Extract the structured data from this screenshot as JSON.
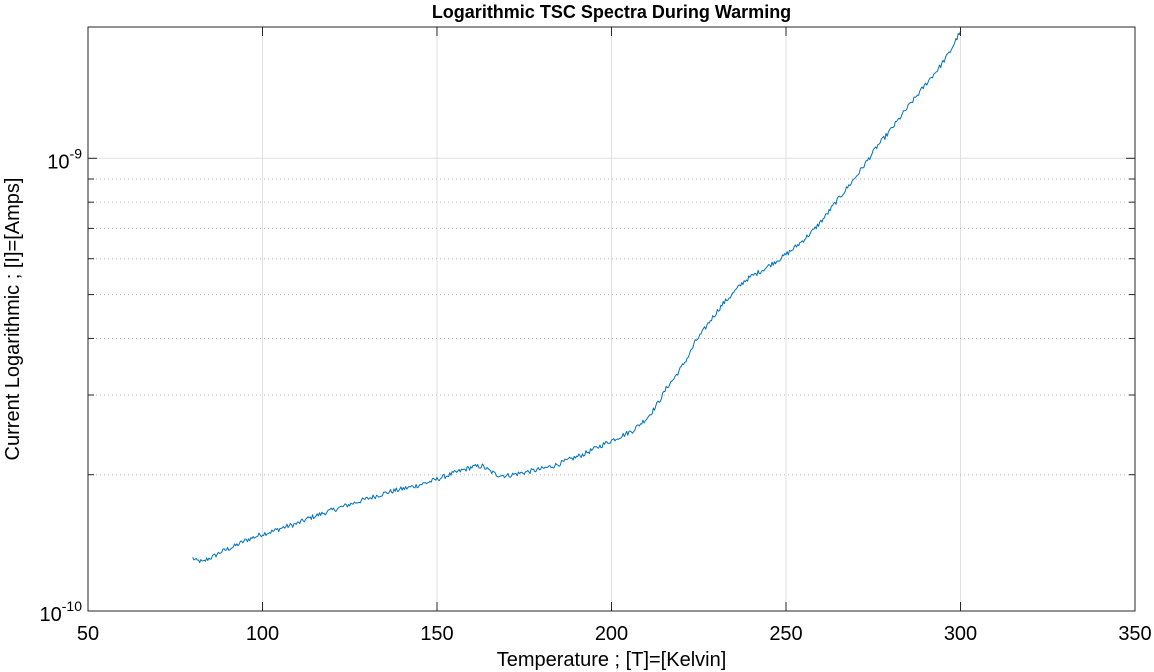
{
  "chart_data": {
    "type": "line",
    "title": "Logarithmic TSC Spectra During Warming",
    "xlabel": "Temperature ; [T]=[Kelvin]",
    "ylabel": "Current Logarithmic ; [I]=[Amps]",
    "xlim": [
      50,
      350
    ],
    "ylim": [
      1e-10,
      1.95e-09
    ],
    "yscale": "log",
    "x_ticks": [
      50,
      100,
      150,
      200,
      250,
      300,
      350
    ],
    "x_tick_labels": [
      "50",
      "100",
      "150",
      "200",
      "250",
      "300",
      "350"
    ],
    "y_major_ticks": [
      {
        "value": 1e-10,
        "base": "10",
        "exp": "-10"
      },
      {
        "value": 1e-09,
        "base": "10",
        "exp": "-9"
      }
    ],
    "y_minor_ticks": [
      2e-10,
      3e-10,
      4e-10,
      5e-10,
      6e-10,
      7e-10,
      8e-10,
      9e-10
    ],
    "grid": true,
    "minor_grid": "dotted",
    "line_color": "#0072BD",
    "series": [
      {
        "x": [
          80,
          81,
          82,
          83,
          84,
          86,
          88,
          90,
          92,
          95,
          98,
          100,
          103,
          106,
          110,
          113,
          116,
          120,
          124,
          128,
          132,
          136,
          140,
          144,
          148,
          152,
          156,
          160,
          163,
          165,
          167,
          170,
          173,
          176,
          180,
          184,
          188,
          192,
          196,
          200,
          204,
          206,
          208,
          210,
          212,
          214,
          216,
          218,
          220,
          222,
          224,
          226,
          228,
          230,
          232,
          234,
          236,
          238,
          240,
          243,
          246,
          249,
          252,
          255,
          258,
          261,
          264,
          267,
          270,
          273,
          276,
          279,
          282,
          285,
          288,
          291,
          294,
          297,
          300
        ],
        "y": [
          1.31e-10,
          1.29e-10,
          1.29e-10,
          1.28e-10,
          1.3e-10,
          1.32e-10,
          1.35e-10,
          1.37e-10,
          1.39e-10,
          1.43e-10,
          1.46e-10,
          1.48e-10,
          1.5e-10,
          1.53e-10,
          1.56e-10,
          1.6e-10,
          1.63e-10,
          1.67e-10,
          1.71e-10,
          1.75e-10,
          1.79e-10,
          1.83e-10,
          1.86e-10,
          1.89e-10,
          1.93e-10,
          1.98e-10,
          2.03e-10,
          2.08e-10,
          2.09e-10,
          2.04e-10,
          2e-10,
          1.99e-10,
          2.01e-10,
          2.03e-10,
          2.06e-10,
          2.1e-10,
          2.16e-10,
          2.22e-10,
          2.3e-10,
          2.38e-10,
          2.46e-10,
          2.5e-10,
          2.58e-10,
          2.66e-10,
          2.78e-10,
          2.94e-10,
          3.13e-10,
          3.27e-10,
          3.45e-10,
          3.65e-10,
          3.93e-10,
          4.12e-10,
          4.35e-10,
          4.56e-10,
          4.78e-10,
          4.95e-10,
          5.15e-10,
          5.35e-10,
          5.48e-10,
          5.65e-10,
          5.85e-10,
          6.05e-10,
          6.3e-10,
          6.6e-10,
          6.95e-10,
          7.4e-10,
          7.95e-10,
          8.5e-10,
          9.1e-10,
          9.8e-10,
          1.06e-09,
          1.13e-09,
          1.21e-09,
          1.3e-09,
          1.39e-09,
          1.49e-09,
          1.59e-09,
          1.72e-09,
          1.91e-09
        ]
      }
    ]
  }
}
